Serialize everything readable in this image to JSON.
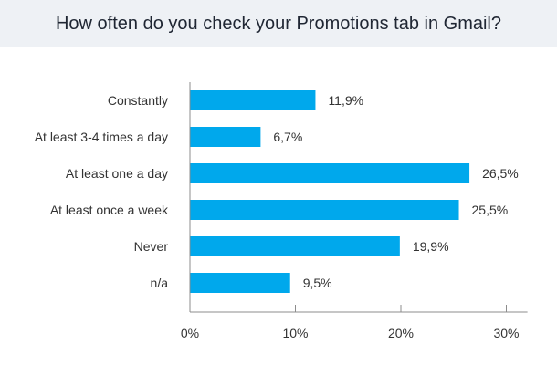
{
  "chart_data": {
    "type": "bar",
    "orientation": "horizontal",
    "title": "How often do you check your Promotions tab in Gmail?",
    "categories": [
      "Constantly",
      "At least 3-4 times a day",
      "At least one a day",
      "At least once a week",
      "Never",
      "n/a"
    ],
    "values": [
      11.9,
      6.7,
      26.5,
      25.5,
      19.9,
      9.5
    ],
    "value_labels": [
      "11,9%",
      "6,7%",
      "26,5%",
      "25,5%",
      "19,9%",
      "9,5%"
    ],
    "x_ticks": [
      0,
      10,
      20,
      30
    ],
    "x_tick_labels": [
      "0%",
      "10%",
      "20%",
      "30%"
    ],
    "xlim": [
      0,
      32
    ],
    "xlabel": "",
    "ylabel": "",
    "grid": false,
    "legend": "none",
    "colors": {
      "bar": "#00a8ec",
      "axis": "#8c8c8c",
      "text": "#333333",
      "title_background": "#eef1f5"
    }
  }
}
